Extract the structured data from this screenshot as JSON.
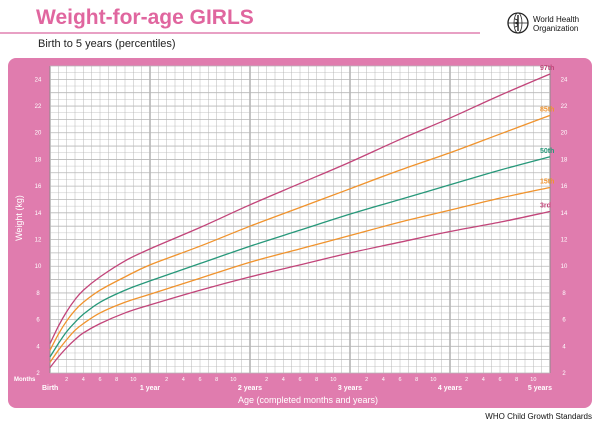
{
  "header": {
    "title": "Weight-for-age GIRLS",
    "subtitle": "Birth to 5 years (percentiles)",
    "org_name_line1": "World Health",
    "org_name_line2": "Organization",
    "footer": "WHO Child Growth Standards"
  },
  "colors": {
    "panel": "#e07cae",
    "grid": "#b7b7b7",
    "p97": "#c2457a",
    "p85": "#f0932d",
    "p50": "#27987a",
    "p15": "#f0932d",
    "p3": "#c2457a"
  },
  "chart_data": {
    "type": "line",
    "title": "Weight-for-age GIRLS",
    "subtitle": "Birth to 5 years (percentiles)",
    "xlabel": "Age (completed months and years)",
    "ylabel": "Weight (kg)",
    "xlim": [
      0,
      60
    ],
    "ylim": [
      2,
      25
    ],
    "y_ticks": [
      2,
      4,
      6,
      8,
      10,
      12,
      14,
      16,
      18,
      20,
      22,
      24
    ],
    "months_label": "Months",
    "month_ticks": [
      {
        "month": 2,
        "label": "2"
      },
      {
        "month": 4,
        "label": "4"
      },
      {
        "month": 6,
        "label": "6"
      },
      {
        "month": 8,
        "label": "8"
      },
      {
        "month": 10,
        "label": "10"
      },
      {
        "month": 14,
        "label": "2"
      },
      {
        "month": 16,
        "label": "4"
      },
      {
        "month": 18,
        "label": "6"
      },
      {
        "month": 20,
        "label": "8"
      },
      {
        "month": 22,
        "label": "10"
      },
      {
        "month": 26,
        "label": "2"
      },
      {
        "month": 28,
        "label": "4"
      },
      {
        "month": 30,
        "label": "6"
      },
      {
        "month": 32,
        "label": "8"
      },
      {
        "month": 34,
        "label": "10"
      },
      {
        "month": 38,
        "label": "2"
      },
      {
        "month": 40,
        "label": "4"
      },
      {
        "month": 42,
        "label": "6"
      },
      {
        "month": 44,
        "label": "8"
      },
      {
        "month": 46,
        "label": "10"
      },
      {
        "month": 50,
        "label": "2"
      },
      {
        "month": 52,
        "label": "4"
      },
      {
        "month": 54,
        "label": "6"
      },
      {
        "month": 56,
        "label": "8"
      },
      {
        "month": 58,
        "label": "10"
      }
    ],
    "year_labels": [
      {
        "month": 0,
        "label": "Birth"
      },
      {
        "month": 12,
        "label": "1 year"
      },
      {
        "month": 24,
        "label": "2 years"
      },
      {
        "month": 36,
        "label": "3 years"
      },
      {
        "month": 48,
        "label": "4 years"
      },
      {
        "month": 60,
        "label": "5 years"
      }
    ],
    "x": [
      0,
      1,
      2,
      3,
      4,
      6,
      9,
      12,
      18,
      24,
      30,
      36,
      42,
      48,
      54,
      60
    ],
    "series": [
      {
        "name": "97th",
        "values": [
          4.2,
          5.5,
          6.6,
          7.5,
          8.2,
          9.2,
          10.4,
          11.3,
          12.9,
          14.6,
          16.2,
          17.8,
          19.5,
          21.1,
          22.8,
          24.4
        ]
      },
      {
        "name": "85th",
        "values": [
          3.7,
          4.9,
          5.9,
          6.7,
          7.3,
          8.2,
          9.2,
          10.1,
          11.5,
          13.0,
          14.4,
          15.8,
          17.2,
          18.5,
          19.9,
          21.3
        ]
      },
      {
        "name": "50th",
        "values": [
          3.2,
          4.2,
          5.1,
          5.8,
          6.4,
          7.3,
          8.2,
          8.9,
          10.2,
          11.5,
          12.7,
          13.9,
          15.0,
          16.1,
          17.2,
          18.2
        ]
      },
      {
        "name": "15th",
        "values": [
          2.8,
          3.7,
          4.5,
          5.2,
          5.7,
          6.5,
          7.3,
          7.9,
          9.1,
          10.3,
          11.3,
          12.3,
          13.3,
          14.2,
          15.1,
          15.9
        ]
      },
      {
        "name": "3rd",
        "values": [
          2.4,
          3.2,
          3.9,
          4.5,
          5.0,
          5.7,
          6.5,
          7.1,
          8.2,
          9.2,
          10.1,
          11.0,
          11.8,
          12.6,
          13.3,
          14.1
        ]
      }
    ]
  }
}
